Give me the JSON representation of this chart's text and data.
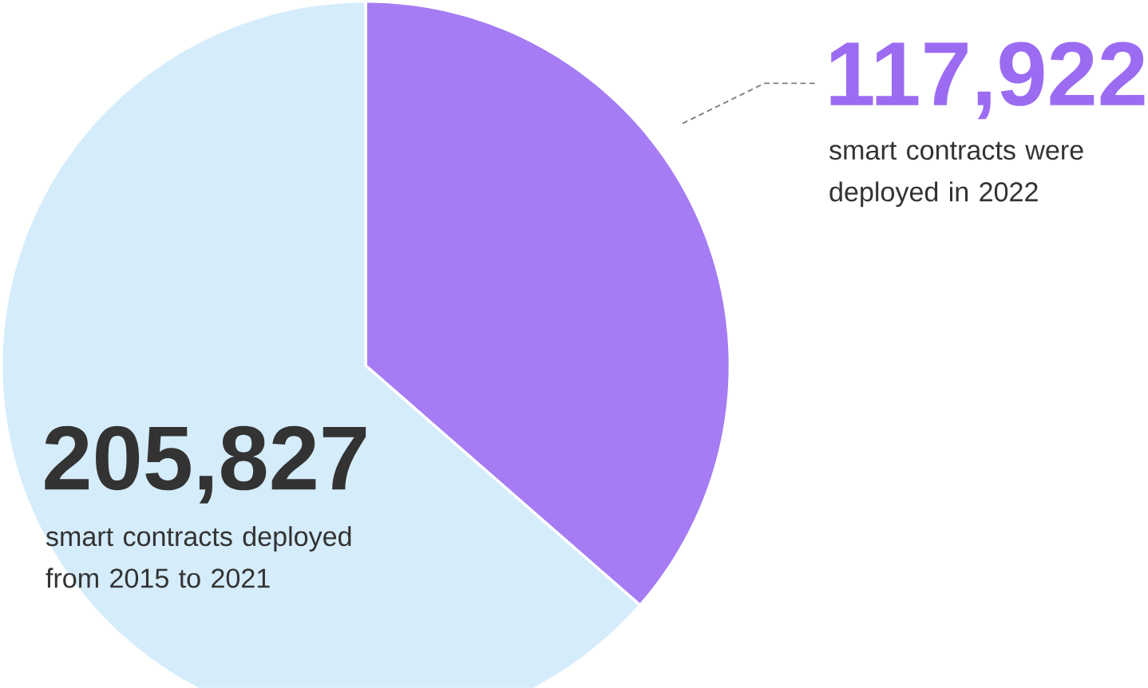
{
  "chart_data": {
    "type": "pie",
    "categories": [
      "smart contracts were deployed in 2022",
      "smart contracts deployed from 2015 to 2021"
    ],
    "values": [
      117922,
      205827
    ],
    "value_labels": [
      "117,922",
      "205,827"
    ],
    "colors": [
      "#a57cf4",
      "#d5ecfb"
    ]
  }
}
